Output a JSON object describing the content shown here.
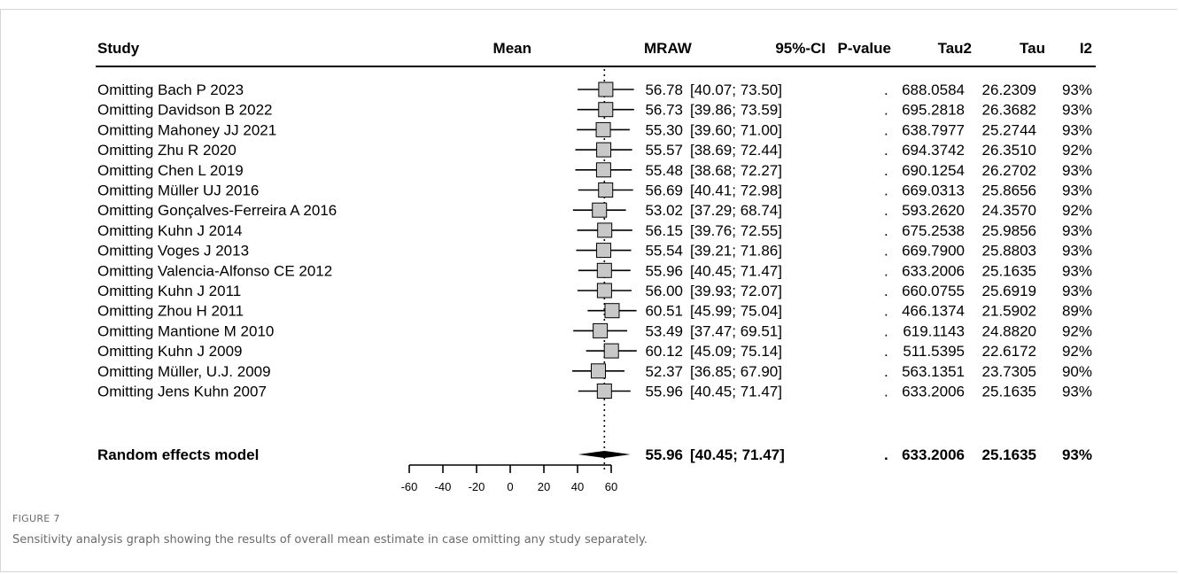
{
  "figure": {
    "label": "FIGURE 7",
    "caption": "Sensitivity analysis graph showing the results of overall mean estimate in case omitting any study separately."
  },
  "chart_data": {
    "type": "forest",
    "columns": {
      "study": "Study",
      "mean": "Mean",
      "mraw": "MRAW",
      "ci": "95%-CI",
      "pvalue": "P-value",
      "tau2": "Tau2",
      "tau": "Tau",
      "i2": "I2"
    },
    "x_ticks": [
      -60,
      -40,
      -20,
      0,
      20,
      40,
      60
    ],
    "xlim": [
      -60,
      60
    ],
    "reference_line": 55.96,
    "rows": [
      {
        "study": "Omitting Bach P 2023",
        "mraw": 56.78,
        "mraw_text": "56.78",
        "ci_text": "[40.07; 73.50]",
        "lower": 40.07,
        "upper": 73.5,
        "pvalue": ".",
        "tau2": "688.0584",
        "tau": "26.2309",
        "i2": "93%"
      },
      {
        "study": "Omitting Davidson B 2022",
        "mraw": 56.73,
        "mraw_text": "56.73",
        "ci_text": "[39.86; 73.59]",
        "lower": 39.86,
        "upper": 73.59,
        "pvalue": ".",
        "tau2": "695.2818",
        "tau": "26.3682",
        "i2": "93%"
      },
      {
        "study": "Omitting Mahoney JJ 2021",
        "mraw": 55.3,
        "mraw_text": "55.30",
        "ci_text": "[39.60; 71.00]",
        "lower": 39.6,
        "upper": 71.0,
        "pvalue": ".",
        "tau2": "638.7977",
        "tau": "25.2744",
        "i2": "93%"
      },
      {
        "study": "Omitting Zhu R  2020",
        "mraw": 55.57,
        "mraw_text": "55.57",
        "ci_text": "[38.69; 72.44]",
        "lower": 38.69,
        "upper": 72.44,
        "pvalue": ".",
        "tau2": "694.3742",
        "tau": "26.3510",
        "i2": "92%"
      },
      {
        "study": "Omitting Chen L 2019",
        "mraw": 55.48,
        "mraw_text": "55.48",
        "ci_text": "[38.68; 72.27]",
        "lower": 38.68,
        "upper": 72.27,
        "pvalue": ".",
        "tau2": "690.1254",
        "tau": "26.2702",
        "i2": "93%"
      },
      {
        "study": "Omitting Müller UJ 2016",
        "mraw": 56.69,
        "mraw_text": "56.69",
        "ci_text": "[40.41; 72.98]",
        "lower": 40.41,
        "upper": 72.98,
        "pvalue": ".",
        "tau2": "669.0313",
        "tau": "25.8656",
        "i2": "93%"
      },
      {
        "study": "Omitting Gonçalves-Ferreira A 2016",
        "mraw": 53.02,
        "mraw_text": "53.02",
        "ci_text": "[37.29; 68.74]",
        "lower": 37.29,
        "upper": 68.74,
        "pvalue": ".",
        "tau2": "593.2620",
        "tau": "24.3570",
        "i2": "92%"
      },
      {
        "study": "Omitting Kuhn J 2014",
        "mraw": 56.15,
        "mraw_text": "56.15",
        "ci_text": "[39.76; 72.55]",
        "lower": 39.76,
        "upper": 72.55,
        "pvalue": ".",
        "tau2": "675.2538",
        "tau": "25.9856",
        "i2": "93%"
      },
      {
        "study": "Omitting Voges J 2013",
        "mraw": 55.54,
        "mraw_text": "55.54",
        "ci_text": "[39.21; 71.86]",
        "lower": 39.21,
        "upper": 71.86,
        "pvalue": ".",
        "tau2": "669.7900",
        "tau": "25.8803",
        "i2": "93%"
      },
      {
        "study": "Omitting Valencia-Alfonso CE 2012",
        "mraw": 55.96,
        "mraw_text": "55.96",
        "ci_text": "[40.45; 71.47]",
        "lower": 40.45,
        "upper": 71.47,
        "pvalue": ".",
        "tau2": "633.2006",
        "tau": "25.1635",
        "i2": "93%"
      },
      {
        "study": "Omitting Kuhn J 2011",
        "mraw": 56.0,
        "mraw_text": "56.00",
        "ci_text": "[39.93; 72.07]",
        "lower": 39.93,
        "upper": 72.07,
        "pvalue": ".",
        "tau2": "660.0755",
        "tau": "25.6919",
        "i2": "93%"
      },
      {
        "study": "Omitting Zhou H  2011",
        "mraw": 60.51,
        "mraw_text": "60.51",
        "ci_text": "[45.99; 75.04]",
        "lower": 45.99,
        "upper": 75.04,
        "pvalue": ".",
        "tau2": "466.1374",
        "tau": "21.5902",
        "i2": "89%"
      },
      {
        "study": "Omitting Mantione M 2010",
        "mraw": 53.49,
        "mraw_text": "53.49",
        "ci_text": "[37.47; 69.51]",
        "lower": 37.47,
        "upper": 69.51,
        "pvalue": ".",
        "tau2": "619.1143",
        "tau": "24.8820",
        "i2": "92%"
      },
      {
        "study": "Omitting Kuhn J 2009",
        "mraw": 60.12,
        "mraw_text": "60.12",
        "ci_text": "[45.09; 75.14]",
        "lower": 45.09,
        "upper": 75.14,
        "pvalue": ".",
        "tau2": "511.5395",
        "tau": "22.6172",
        "i2": "92%"
      },
      {
        "study": "Omitting Müller, U.J. 2009",
        "mraw": 52.37,
        "mraw_text": "52.37",
        "ci_text": "[36.85; 67.90]",
        "lower": 36.85,
        "upper": 67.9,
        "pvalue": ".",
        "tau2": "563.1351",
        "tau": "23.7305",
        "i2": "90%"
      },
      {
        "study": "Omitting Jens Kuhn 2007",
        "mraw": 55.96,
        "mraw_text": "55.96",
        "ci_text": "[40.45; 71.47]",
        "lower": 40.45,
        "upper": 71.47,
        "pvalue": ".",
        "tau2": "633.2006",
        "tau": "25.1635",
        "i2": "93%"
      }
    ],
    "summary": {
      "study": "Random effects model",
      "mraw": 55.96,
      "mraw_text": "55.96",
      "ci_text": "[40.45; 71.47]",
      "lower": 40.45,
      "upper": 71.47,
      "pvalue": ".",
      "tau2": "633.2006",
      "tau": "25.1635",
      "i2": "93%"
    },
    "colors": {
      "box_fill": "#c8c8c8",
      "ink": "#000000"
    }
  }
}
